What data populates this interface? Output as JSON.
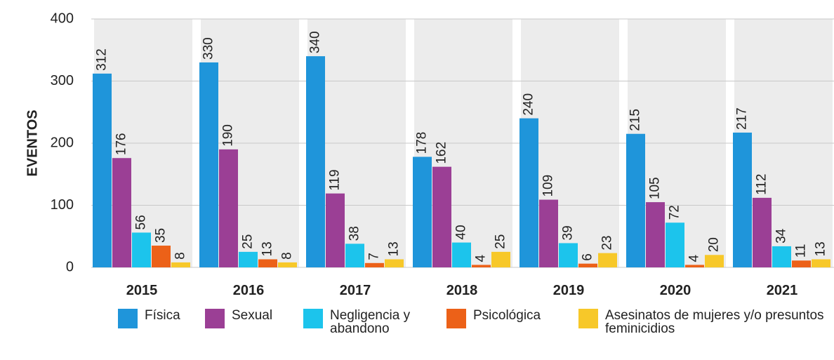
{
  "chart_data": {
    "type": "bar",
    "y_label": "EVENTOS",
    "categories": [
      "2015",
      "2016",
      "2017",
      "2018",
      "2019",
      "2020",
      "2021"
    ],
    "ylim": [
      0,
      400
    ],
    "yticks": [
      0,
      100,
      200,
      300,
      400
    ],
    "grid": true,
    "series": [
      {
        "name": "Física",
        "color": "#1f95da",
        "values": [
          312,
          330,
          340,
          178,
          240,
          215,
          217
        ]
      },
      {
        "name": "Sexual",
        "color": "#9b3f95",
        "values": [
          176,
          190,
          119,
          162,
          109,
          105,
          112
        ]
      },
      {
        "name": "Negligencia y abandono",
        "color": "#1cc4ec",
        "values": [
          56,
          25,
          38,
          40,
          39,
          72,
          34
        ]
      },
      {
        "name": "Psicológica",
        "color": "#ec6118",
        "values": [
          35,
          13,
          7,
          4,
          6,
          4,
          11
        ]
      },
      {
        "name": "Asesinatos de mujeres y/o presuntos feminicidios",
        "color": "#f7c829",
        "values": [
          8,
          8,
          13,
          25,
          23,
          20,
          13
        ]
      }
    ]
  }
}
